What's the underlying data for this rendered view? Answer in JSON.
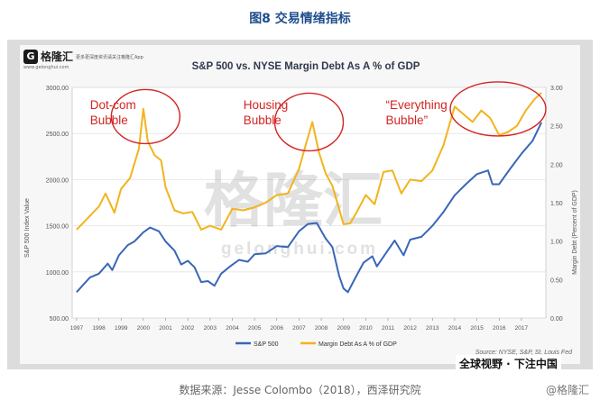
{
  "figure_caption": "图8 交易情绪指标",
  "logo": {
    "name": "格隆汇",
    "tagline": "更多更深度资讯请关注格隆汇App",
    "url": "www.gelonghui.com"
  },
  "watermark": {
    "main": "格隆汇",
    "sub": "gelonghui.com"
  },
  "source_note": "数据来源：Jesse Colombo（2018），西泽研究院",
  "credit": "@格隆汇",
  "corner_banner": "全球视野 · 下注中国",
  "colors": {
    "sp500": "#3a66b8",
    "margin": "#f2b41c",
    "bubble_text": "#d42323",
    "circle": "#d42323",
    "title_text": "#2e3a4d"
  },
  "chart_data": {
    "type": "line",
    "title": "S&P 500 vs. NYSE Margin Debt As A % of GDP",
    "ylabel": "S&P 500 Index Value",
    "y2label": "Margin Debt (Percent of GDP)",
    "ylim": [
      500,
      3000
    ],
    "y2lim": [
      0,
      3
    ],
    "yticks": [
      "500.00",
      "1000.00",
      "1500.00",
      "2000.00",
      "2500.00",
      "3000.00"
    ],
    "y2ticks": [
      "0.00",
      "0.50",
      "1.00",
      "1.50",
      "2.00",
      "2.50",
      "3.00"
    ],
    "xticks": [
      "1997",
      "1998",
      "1999",
      "2000",
      "2001",
      "2002",
      "2003",
      "2004",
      "2005",
      "2006",
      "2007",
      "2008",
      "2009",
      "2010",
      "2011",
      "2012",
      "2013",
      "2014",
      "2015",
      "2016",
      "2017"
    ],
    "grid": true,
    "legend_position": "bottom-left",
    "source": "Source: NYSE, S&P, St. Louis Fed",
    "annotations": [
      "Dot-com\nBubble",
      "Housing\nBubble",
      "“Everything\nBubble”"
    ],
    "series": [
      {
        "name": "S&P 500",
        "axis": "left",
        "x": [
          1997.0,
          1997.3,
          1997.6,
          1998.0,
          1998.4,
          1998.6,
          1998.9,
          1999.3,
          1999.6,
          2000.0,
          2000.3,
          2000.7,
          2001.0,
          2001.4,
          2001.7,
          2002.0,
          2002.3,
          2002.6,
          2002.9,
          2003.2,
          2003.5,
          2003.9,
          2004.3,
          2004.7,
          2005.0,
          2005.5,
          2006.0,
          2006.5,
          2007.0,
          2007.4,
          2007.8,
          2008.2,
          2008.5,
          2008.8,
          2009.0,
          2009.2,
          2009.5,
          2009.9,
          2010.3,
          2010.5,
          2010.9,
          2011.3,
          2011.7,
          2012.0,
          2012.5,
          2013.0,
          2013.5,
          2014.0,
          2014.5,
          2015.0,
          2015.5,
          2015.7,
          2016.0,
          2016.5,
          2017.0,
          2017.5,
          2017.9
        ],
        "values": [
          780,
          860,
          940,
          980,
          1090,
          1020,
          1180,
          1290,
          1330,
          1430,
          1480,
          1440,
          1330,
          1230,
          1080,
          1120,
          1050,
          890,
          900,
          850,
          980,
          1060,
          1130,
          1110,
          1190,
          1200,
          1280,
          1270,
          1440,
          1520,
          1530,
          1360,
          1270,
          960,
          820,
          780,
          920,
          1100,
          1170,
          1060,
          1200,
          1340,
          1180,
          1350,
          1380,
          1500,
          1650,
          1830,
          1950,
          2060,
          2100,
          1950,
          1950,
          2120,
          2280,
          2420,
          2620
        ]
      },
      {
        "name": "Margin Debt As A % of GDP",
        "axis": "right",
        "x": [
          1997.0,
          1997.5,
          1998.0,
          1998.3,
          1998.7,
          1999.0,
          1999.4,
          1999.8,
          2000.0,
          2000.2,
          2000.5,
          2000.8,
          2001.0,
          2001.4,
          2001.8,
          2002.2,
          2002.6,
          2003.0,
          2003.5,
          2004.0,
          2004.5,
          2005.0,
          2005.5,
          2006.0,
          2006.5,
          2007.0,
          2007.3,
          2007.6,
          2007.9,
          2008.2,
          2008.5,
          2008.8,
          2009.0,
          2009.3,
          2009.6,
          2010.0,
          2010.4,
          2010.8,
          2011.2,
          2011.6,
          2012.0,
          2012.5,
          2013.0,
          2013.5,
          2014.0,
          2014.4,
          2014.8,
          2015.2,
          2015.6,
          2016.0,
          2016.4,
          2016.8,
          2017.2,
          2017.6,
          2017.9
        ],
        "values": [
          1.15,
          1.3,
          1.45,
          1.62,
          1.37,
          1.68,
          1.82,
          2.2,
          2.72,
          2.3,
          2.12,
          2.05,
          1.7,
          1.4,
          1.36,
          1.38,
          1.15,
          1.2,
          1.15,
          1.42,
          1.4,
          1.44,
          1.5,
          1.6,
          1.62,
          1.94,
          2.25,
          2.55,
          2.15,
          1.88,
          1.72,
          1.42,
          1.22,
          1.23,
          1.38,
          1.6,
          1.48,
          1.9,
          1.92,
          1.62,
          1.8,
          1.78,
          1.92,
          2.25,
          2.75,
          2.65,
          2.55,
          2.7,
          2.6,
          2.38,
          2.42,
          2.5,
          2.7,
          2.85,
          2.93
        ]
      }
    ]
  }
}
